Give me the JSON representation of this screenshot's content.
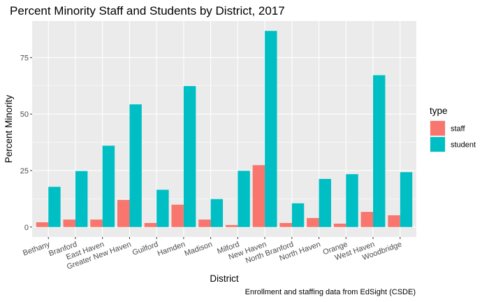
{
  "chart_data": {
    "type": "bar",
    "title": "Percent Minority Staff and Students by District, 2017",
    "xlabel": "District",
    "ylabel": "Percent Minority",
    "caption": "Enrollment and staffing data from EdSight (CSDE)",
    "legend_title": "type",
    "legend_position": "right",
    "grid": true,
    "ylim": [
      0,
      90
    ],
    "yticks": [
      0,
      25,
      50,
      75
    ],
    "categories": [
      "Bethany",
      "Branford",
      "East Haven",
      "Greater New Haven",
      "Guilford",
      "Hamden",
      "Madison",
      "Milford",
      "New Haven",
      "North Branford",
      "North Haven",
      "Orange",
      "West Haven",
      "Woodbridge"
    ],
    "series": [
      {
        "name": "staff",
        "color": "#F8766D",
        "values": [
          2.1,
          3.3,
          3.3,
          12.0,
          1.8,
          9.9,
          3.3,
          0.9,
          27.4,
          1.8,
          4.0,
          1.5,
          6.7,
          5.2
        ]
      },
      {
        "name": "student",
        "color": "#00BFC4",
        "values": [
          17.8,
          24.8,
          36.0,
          54.3,
          16.5,
          62.4,
          12.4,
          24.9,
          86.8,
          10.5,
          21.3,
          23.4,
          67.2,
          24.3
        ]
      }
    ]
  }
}
